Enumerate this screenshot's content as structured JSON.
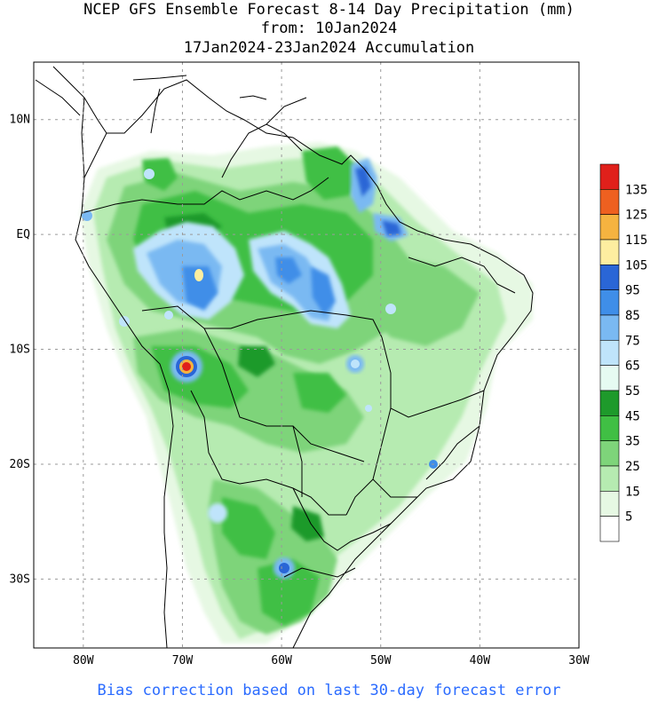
{
  "title": {
    "line1": "NCEP GFS Ensemble Forecast 8-14 Day Precipitation (mm)",
    "line2": "from: 10Jan2024",
    "line3": "17Jan2024-23Jan2024 Accumulation"
  },
  "axes": {
    "lat_labels": [
      "10N",
      "EQ",
      "10S",
      "20S",
      "30S"
    ],
    "lat_values": [
      10,
      0,
      -10,
      -20,
      -30
    ],
    "lon_labels": [
      "80W",
      "70W",
      "60W",
      "50W",
      "40W",
      "30W"
    ],
    "lon_values": [
      -80,
      -70,
      -60,
      -50,
      -40,
      -30
    ],
    "lat_range": [
      -36,
      15
    ],
    "lon_range": [
      -85,
      -30
    ]
  },
  "legend": {
    "labels": [
      "135",
      "125",
      "115",
      "105",
      "95",
      "85",
      "75",
      "65",
      "55",
      "45",
      "35",
      "25",
      "15",
      "5"
    ],
    "colors": [
      "#e0201b",
      "#ee6020",
      "#f5b340",
      "#fdeea0",
      "#2a66d6",
      "#3f8ee8",
      "#7ab9f2",
      "#bfe4fb",
      "#e6fbf2",
      "#1e9a2b",
      "#40bf44",
      "#7ed47a",
      "#b6ebb1",
      "#e6f8e3",
      "#ffffff"
    ]
  },
  "footer": "Bias correction based on last 30-day forecast error"
}
